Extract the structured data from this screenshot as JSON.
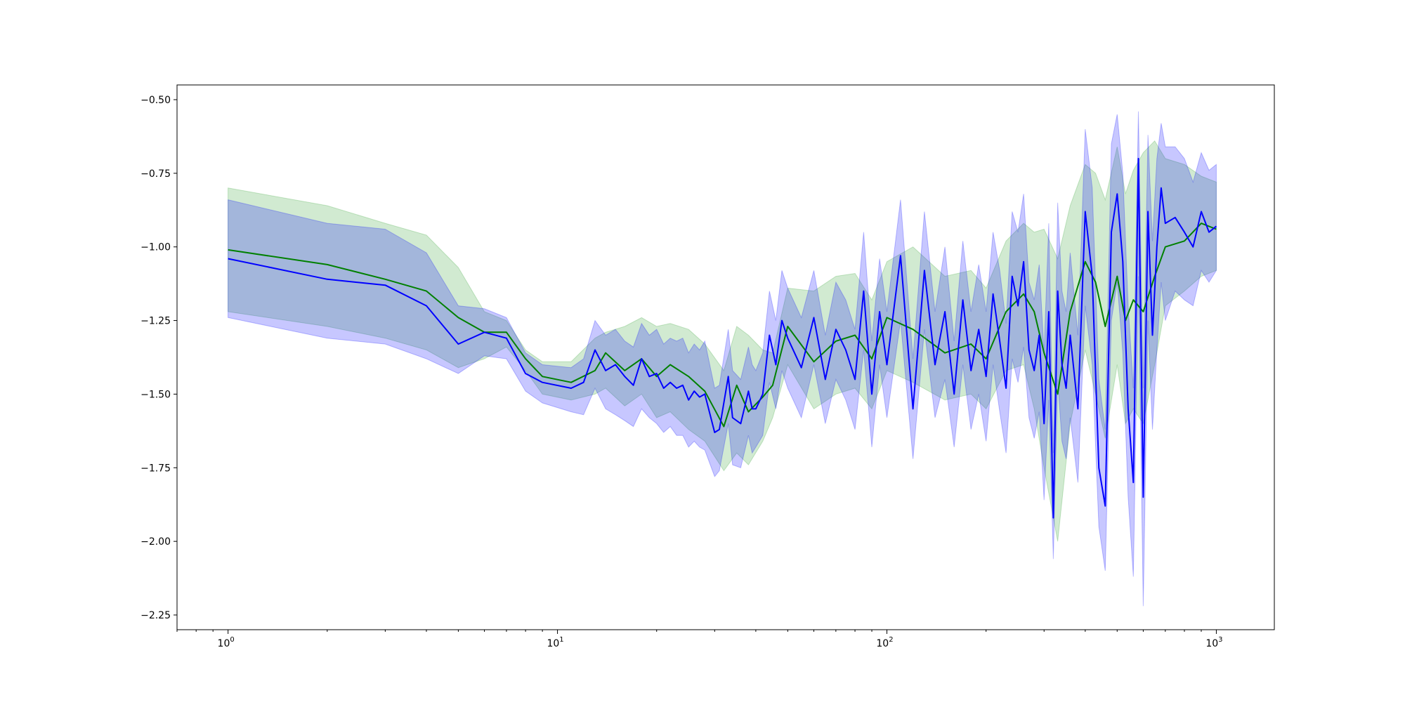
{
  "chart_data": {
    "type": "line",
    "title": "",
    "xlabel": "",
    "ylabel": "",
    "xscale": "log",
    "xlim": [
      0.7,
      1500
    ],
    "ylim": [
      -2.3,
      -0.45
    ],
    "grid": false,
    "legend": "none",
    "colors": {
      "green_line": "#008000",
      "blue_line": "#0000ff",
      "green_band": "#2ca02c",
      "blue_band": "#0000ff"
    },
    "yticks": [
      {
        "value": -0.5,
        "label": "−0.50"
      },
      {
        "value": -0.75,
        "label": "−0.75"
      },
      {
        "value": -1.0,
        "label": "−1.00"
      },
      {
        "value": -1.25,
        "label": "−1.25"
      },
      {
        "value": -1.5,
        "label": "−1.50"
      },
      {
        "value": -1.75,
        "label": "−1.75"
      },
      {
        "value": -2.0,
        "label": "−2.00"
      },
      {
        "value": -2.25,
        "label": "−2.25"
      }
    ],
    "xticks": [
      {
        "value": 1,
        "base": "10",
        "exp": "0"
      },
      {
        "value": 10,
        "base": "10",
        "exp": "1"
      },
      {
        "value": 100,
        "base": "10",
        "exp": "2"
      },
      {
        "value": 1000,
        "base": "10",
        "exp": "3"
      }
    ],
    "series": [
      {
        "color_key": "green",
        "x": [
          1,
          2,
          3,
          4,
          5,
          6,
          7,
          8,
          9,
          11,
          13,
          14,
          16,
          18,
          20,
          22,
          25,
          28,
          32,
          35,
          38,
          42,
          45,
          50,
          60,
          70,
          80,
          90,
          100,
          120,
          150,
          180,
          200,
          230,
          260,
          280,
          300,
          330,
          360,
          400,
          430,
          460,
          500,
          530,
          560,
          600,
          650,
          700,
          800,
          900,
          1000
        ],
        "mean": [
          -1.01,
          -1.06,
          -1.11,
          -1.15,
          -1.24,
          -1.29,
          -1.29,
          -1.38,
          -1.44,
          -1.46,
          -1.42,
          -1.36,
          -1.42,
          -1.38,
          -1.44,
          -1.4,
          -1.44,
          -1.49,
          -1.61,
          -1.47,
          -1.56,
          -1.51,
          -1.47,
          -1.27,
          -1.39,
          -1.32,
          -1.3,
          -1.38,
          -1.24,
          -1.28,
          -1.36,
          -1.33,
          -1.38,
          -1.22,
          -1.16,
          -1.22,
          -1.36,
          -1.5,
          -1.22,
          -1.05,
          -1.12,
          -1.27,
          -1.1,
          -1.25,
          -1.18,
          -1.22,
          -1.1,
          -1.0,
          -0.98,
          -0.92,
          -0.94
        ],
        "low": [
          -1.22,
          -1.27,
          -1.31,
          -1.35,
          -1.41,
          -1.38,
          -1.34,
          -1.42,
          -1.5,
          -1.52,
          -1.5,
          -1.48,
          -1.54,
          -1.5,
          -1.58,
          -1.56,
          -1.62,
          -1.66,
          -1.76,
          -1.7,
          -1.74,
          -1.66,
          -1.58,
          -1.4,
          -1.55,
          -1.5,
          -1.48,
          -1.55,
          -1.42,
          -1.46,
          -1.52,
          -1.5,
          -1.55,
          -1.42,
          -1.4,
          -1.55,
          -1.75,
          -2.0,
          -1.6,
          -1.35,
          -1.5,
          -1.65,
          -1.4,
          -1.6,
          -1.55,
          -1.6,
          -1.4,
          -1.2,
          -1.15,
          -1.1,
          -1.08
        ],
        "high": [
          -0.8,
          -0.86,
          -0.92,
          -0.96,
          -1.07,
          -1.22,
          -1.25,
          -1.35,
          -1.39,
          -1.39,
          -1.31,
          -1.29,
          -1.27,
          -1.24,
          -1.27,
          -1.26,
          -1.28,
          -1.33,
          -1.42,
          -1.27,
          -1.3,
          -1.35,
          -1.36,
          -1.14,
          -1.15,
          -1.1,
          -1.09,
          -1.18,
          -1.05,
          -1.0,
          -1.1,
          -1.08,
          -1.14,
          -0.98,
          -0.92,
          -0.95,
          -0.94,
          -1.04,
          -0.86,
          -0.72,
          -0.75,
          -0.84,
          -0.66,
          -0.82,
          -0.74,
          -0.68,
          -0.64,
          -0.7,
          -0.72,
          -0.76,
          -0.78
        ]
      },
      {
        "color_key": "blue",
        "x": [
          1,
          2,
          3,
          4,
          5,
          6,
          7,
          8,
          9,
          11,
          12,
          13,
          14,
          15,
          16,
          17,
          18,
          19,
          20,
          21,
          22,
          23,
          24,
          25,
          26,
          27,
          28,
          30,
          31,
          33,
          34,
          36,
          38,
          39,
          40,
          42,
          44,
          46,
          48,
          50,
          55,
          60,
          65,
          70,
          75,
          80,
          85,
          90,
          95,
          100,
          110,
          120,
          130,
          140,
          150,
          160,
          170,
          180,
          190,
          200,
          210,
          220,
          230,
          240,
          250,
          260,
          270,
          280,
          290,
          300,
          310,
          320,
          330,
          340,
          350,
          360,
          380,
          400,
          420,
          440,
          460,
          480,
          500,
          520,
          540,
          560,
          580,
          600,
          620,
          640,
          660,
          680,
          700,
          750,
          800,
          850,
          900,
          950,
          1000
        ],
        "mean": [
          -1.04,
          -1.11,
          -1.13,
          -1.2,
          -1.33,
          -1.29,
          -1.31,
          -1.43,
          -1.46,
          -1.48,
          -1.46,
          -1.35,
          -1.42,
          -1.4,
          -1.44,
          -1.47,
          -1.38,
          -1.44,
          -1.43,
          -1.48,
          -1.46,
          -1.48,
          -1.47,
          -1.52,
          -1.49,
          -1.51,
          -1.5,
          -1.63,
          -1.62,
          -1.44,
          -1.58,
          -1.6,
          -1.49,
          -1.55,
          -1.55,
          -1.5,
          -1.3,
          -1.4,
          -1.25,
          -1.31,
          -1.41,
          -1.24,
          -1.45,
          -1.28,
          -1.35,
          -1.45,
          -1.15,
          -1.5,
          -1.22,
          -1.4,
          -1.03,
          -1.55,
          -1.08,
          -1.4,
          -1.22,
          -1.5,
          -1.18,
          -1.42,
          -1.28,
          -1.44,
          -1.16,
          -1.32,
          -1.48,
          -1.1,
          -1.2,
          -1.05,
          -1.35,
          -1.42,
          -1.3,
          -1.6,
          -1.22,
          -1.92,
          -1.15,
          -1.4,
          -1.48,
          -1.3,
          -1.55,
          -0.88,
          -1.1,
          -1.75,
          -1.88,
          -0.95,
          -0.82,
          -1.05,
          -1.55,
          -1.8,
          -0.7,
          -1.85,
          -0.88,
          -1.3,
          -1.0,
          -0.8,
          -0.92,
          -0.9,
          -0.95,
          -1.0,
          -0.88,
          -0.95,
          -0.93
        ],
        "low": [
          -1.24,
          -1.31,
          -1.33,
          -1.38,
          -1.43,
          -1.37,
          -1.38,
          -1.49,
          -1.53,
          -1.56,
          -1.57,
          -1.48,
          -1.55,
          -1.57,
          -1.59,
          -1.61,
          -1.55,
          -1.58,
          -1.6,
          -1.63,
          -1.61,
          -1.64,
          -1.64,
          -1.68,
          -1.66,
          -1.68,
          -1.69,
          -1.78,
          -1.76,
          -1.6,
          -1.74,
          -1.75,
          -1.64,
          -1.7,
          -1.68,
          -1.64,
          -1.46,
          -1.55,
          -1.42,
          -1.48,
          -1.58,
          -1.4,
          -1.6,
          -1.45,
          -1.52,
          -1.62,
          -1.35,
          -1.68,
          -1.4,
          -1.58,
          -1.25,
          -1.72,
          -1.28,
          -1.58,
          -1.45,
          -1.68,
          -1.4,
          -1.62,
          -1.5,
          -1.66,
          -1.4,
          -1.56,
          -1.7,
          -1.38,
          -1.46,
          -1.34,
          -1.58,
          -1.65,
          -1.56,
          -1.86,
          -1.52,
          -2.06,
          -1.45,
          -1.66,
          -1.72,
          -1.58,
          -1.8,
          -1.2,
          -1.4,
          -1.95,
          -2.1,
          -1.25,
          -1.12,
          -1.36,
          -1.85,
          -2.12,
          -1.1,
          -2.22,
          -1.25,
          -1.62,
          -1.35,
          -1.12,
          -1.25,
          -1.15,
          -1.18,
          -1.2,
          -1.08,
          -1.12,
          -1.08
        ],
        "high": [
          -0.84,
          -0.92,
          -0.94,
          -1.02,
          -1.2,
          -1.21,
          -1.24,
          -1.36,
          -1.4,
          -1.41,
          -1.38,
          -1.25,
          -1.3,
          -1.28,
          -1.32,
          -1.34,
          -1.26,
          -1.3,
          -1.28,
          -1.33,
          -1.31,
          -1.32,
          -1.31,
          -1.36,
          -1.33,
          -1.35,
          -1.32,
          -1.48,
          -1.47,
          -1.28,
          -1.42,
          -1.45,
          -1.34,
          -1.4,
          -1.42,
          -1.36,
          -1.15,
          -1.25,
          -1.08,
          -1.14,
          -1.24,
          -1.08,
          -1.3,
          -1.12,
          -1.18,
          -1.28,
          -0.95,
          -1.32,
          -1.04,
          -1.22,
          -0.84,
          -1.38,
          -0.88,
          -1.22,
          -1.0,
          -1.32,
          -0.98,
          -1.22,
          -1.06,
          -1.22,
          -0.95,
          -1.08,
          -1.26,
          -0.88,
          -0.95,
          -0.82,
          -1.12,
          -1.18,
          -1.06,
          -1.36,
          -0.92,
          -1.7,
          -0.85,
          -1.15,
          -1.22,
          -1.02,
          -1.3,
          -0.6,
          -0.8,
          -1.45,
          -1.62,
          -0.65,
          -0.55,
          -0.75,
          -1.2,
          -1.48,
          -0.54,
          -1.48,
          -0.62,
          -0.98,
          -0.7,
          -0.58,
          -0.66,
          -0.66,
          -0.7,
          -0.78,
          -0.68,
          -0.74,
          -0.72
        ]
      }
    ]
  }
}
